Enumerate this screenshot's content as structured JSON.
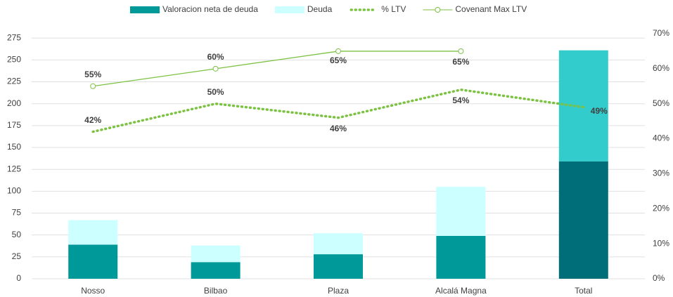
{
  "chart_data": {
    "type": "bar",
    "categories": [
      "Nosso",
      "Bilbao",
      "Plaza",
      "Alcalá Magna",
      "Total"
    ],
    "series": [
      {
        "name": "Valoracion neta de deuda",
        "color": "#009999",
        "colors": [
          "#009999",
          "#009999",
          "#009999",
          "#009999",
          "#006e78"
        ],
        "values": [
          39,
          19,
          28,
          49,
          134
        ]
      },
      {
        "name": "Deuda",
        "color": "#ccffff",
        "colors": [
          "#ccffff",
          "#ccffff",
          "#ccffff",
          "#ccffff",
          "#33cccc"
        ],
        "values": [
          28,
          19,
          24,
          56,
          127
        ]
      },
      {
        "name": "% LTV",
        "type": "line",
        "style": "dotted",
        "color": "#7cc242",
        "axis": "y2",
        "values": [
          42,
          50,
          46,
          54,
          49
        ],
        "value_labels": [
          "42%",
          "50%",
          "46%",
          "54%",
          "49%"
        ]
      },
      {
        "name": "Covenant Max LTV",
        "type": "line",
        "style": "solid-marker",
        "color": "#7cc242",
        "axis": "y2",
        "values": [
          55,
          60,
          65,
          65,
          null
        ],
        "value_labels": [
          "55%",
          "60%",
          "65%",
          "65%",
          null
        ]
      }
    ],
    "ylim": [
      0,
      280
    ],
    "yticks": [
      0,
      25,
      50,
      75,
      100,
      125,
      150,
      175,
      200,
      225,
      250,
      275
    ],
    "y2lim": [
      0,
      70
    ],
    "y2ticks": [
      {
        "value": 0,
        "label": "0%"
      },
      {
        "value": 10,
        "label": "10%"
      },
      {
        "value": 20,
        "label": "20%"
      },
      {
        "value": 30,
        "label": "30%"
      },
      {
        "value": 40,
        "label": "40%"
      },
      {
        "value": 50,
        "label": "50%"
      },
      {
        "value": 60,
        "label": "60%"
      },
      {
        "value": 70,
        "label": "70%"
      }
    ],
    "grid": true,
    "legend": "top"
  }
}
